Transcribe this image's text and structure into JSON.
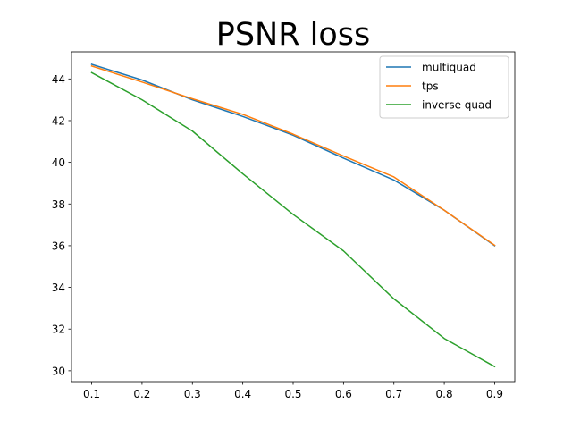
{
  "chart_data": {
    "type": "line",
    "title": "PSNR loss",
    "xlabel": "",
    "ylabel": "",
    "x": [
      0.1,
      0.2,
      0.3,
      0.4,
      0.5,
      0.6,
      0.7,
      0.8,
      0.9
    ],
    "xticks": [
      "0.1",
      "0.2",
      "0.3",
      "0.4",
      "0.5",
      "0.6",
      "0.7",
      "0.8",
      "0.9"
    ],
    "yticks": [
      "30",
      "32",
      "34",
      "36",
      "38",
      "40",
      "42",
      "44"
    ],
    "xlim": [
      0.06,
      0.94
    ],
    "ylim": [
      29.48,
      45.3
    ],
    "grid": false,
    "legend": "upper right",
    "series": [
      {
        "name": "multiquad",
        "color": "#1f77b4",
        "values": [
          44.7,
          43.95,
          43.0,
          42.2,
          41.3,
          40.2,
          39.15,
          37.7,
          36.0
        ]
      },
      {
        "name": "tps",
        "color": "#ff7f0e",
        "values": [
          44.62,
          43.85,
          43.05,
          42.3,
          41.35,
          40.3,
          39.3,
          37.7,
          36.02
        ]
      },
      {
        "name": "inverse quad",
        "color": "#2ca02c",
        "values": [
          44.3,
          43.0,
          41.5,
          39.45,
          37.5,
          35.75,
          33.45,
          31.55,
          30.2
        ]
      }
    ]
  }
}
